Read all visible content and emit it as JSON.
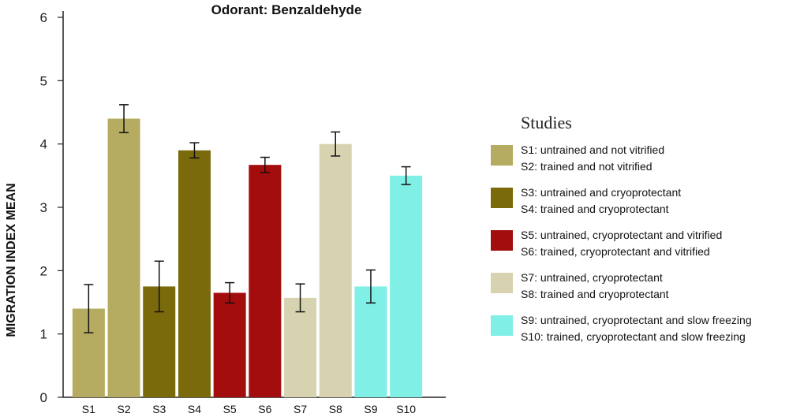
{
  "chart_data": {
    "type": "bar",
    "title": "Odorant: Benzaldehyde",
    "xlabel": "",
    "ylabel": "MIGRATION INDEX MEAN",
    "ylim": [
      0,
      6
    ],
    "yticks": [
      "0",
      "1",
      "2",
      "3",
      "4",
      "5",
      "6"
    ],
    "categories": [
      "S1",
      "S2",
      "S3",
      "S4",
      "S5",
      "S6",
      "S7",
      "S8",
      "S9",
      "S10"
    ],
    "values": [
      1.4,
      4.4,
      1.75,
      3.9,
      1.65,
      3.67,
      1.57,
      4.0,
      1.75,
      3.5
    ],
    "errors": [
      0.38,
      0.22,
      0.4,
      0.12,
      0.16,
      0.12,
      0.22,
      0.19,
      0.26,
      0.14
    ],
    "bar_colors": [
      "#b5ab61",
      "#b5ab61",
      "#7a6a0c",
      "#7a6a0c",
      "#a30d0d",
      "#a30d0d",
      "#d7d3b0",
      "#d7d3b0",
      "#80efe6",
      "#80efe6"
    ],
    "legend": {
      "title": "Studies",
      "entries": [
        {
          "color": "#b5ab61",
          "lines": [
            "S1: untrained and not vitrified",
            "S2: trained and not vitrified"
          ]
        },
        {
          "color": "#7a6a0c",
          "lines": [
            "S3: untrained and cryoprotectant",
            "S4: trained and cryoprotectant"
          ]
        },
        {
          "color": "#a30d0d",
          "lines": [
            "S5: untrained, cryoprotectant and vitrified",
            "S6: trained, cryoprotectant and vitrified"
          ]
        },
        {
          "color": "#d7d3b0",
          "lines": [
            "S7: untrained, cryoprotectant",
            "S8: trained and cryoprotectant"
          ]
        },
        {
          "color": "#80efe6",
          "lines": [
            "S9: untrained, cryoprotectant and slow freezing",
            "S10: trained, cryoprotectant and slow freezing"
          ]
        }
      ]
    }
  }
}
